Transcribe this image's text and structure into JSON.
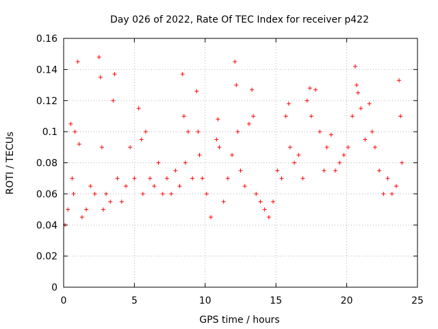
{
  "chart_data": {
    "type": "scatter",
    "title": "Day 026 of 2022, Rate Of TEC Index for receiver p422",
    "xlabel": "GPS time / hours",
    "ylabel": "ROTI / TECUs",
    "xlim": [
      0,
      25
    ],
    "ylim": [
      0,
      0.16
    ],
    "xticks": [
      "0",
      "5",
      "10",
      "15",
      "20",
      "25"
    ],
    "yticks": [
      "0",
      "0.02",
      "0.04",
      "0.06",
      "0.08",
      "0.1",
      "0.12",
      "0.14",
      "0.16"
    ],
    "grid": true,
    "marker": "plus",
    "color": "#ff0000",
    "series": [
      {
        "x": [
          0.1,
          0.3,
          0.5,
          0.6,
          0.7,
          0.8,
          1.0,
          1.1,
          1.3,
          1.6,
          1.9,
          2.2,
          2.5,
          2.6,
          2.7,
          2.8,
          3.0,
          3.3,
          3.5,
          3.6,
          3.8,
          4.1,
          4.4,
          4.7,
          5.0,
          5.3,
          5.5,
          5.6,
          5.8,
          6.1,
          6.4,
          6.7,
          7.0,
          7.3,
          7.6,
          7.9,
          8.2,
          8.4,
          8.5,
          8.6,
          8.8,
          9.1,
          9.4,
          9.5,
          9.6,
          9.8,
          10.1,
          10.4,
          10.8,
          10.9,
          11.0,
          11.3,
          11.6,
          11.9,
          12.1,
          12.2,
          12.3,
          12.5,
          12.8,
          13.1,
          13.3,
          13.4,
          13.6,
          13.9,
          14.2,
          14.5,
          14.8,
          15.1,
          15.4,
          15.7,
          15.9,
          16.0,
          16.3,
          16.6,
          16.9,
          17.2,
          17.4,
          17.5,
          17.8,
          18.1,
          18.4,
          18.6,
          18.9,
          19.2,
          19.5,
          19.8,
          20.1,
          20.4,
          20.6,
          20.7,
          20.8,
          21.0,
          21.3,
          21.6,
          21.8,
          22.0,
          22.3,
          22.6,
          22.9,
          23.2,
          23.5,
          23.7,
          23.8,
          23.9
        ],
        "y": [
          0.04,
          0.05,
          0.105,
          0.07,
          0.06,
          0.1,
          0.145,
          0.092,
          0.045,
          0.05,
          0.065,
          0.06,
          0.148,
          0.135,
          0.09,
          0.05,
          0.06,
          0.055,
          0.12,
          0.137,
          0.07,
          0.055,
          0.065,
          0.09,
          0.07,
          0.115,
          0.095,
          0.06,
          0.1,
          0.07,
          0.065,
          0.08,
          0.06,
          0.07,
          0.06,
          0.075,
          0.065,
          0.137,
          0.11,
          0.08,
          0.1,
          0.07,
          0.126,
          0.1,
          0.085,
          0.07,
          0.06,
          0.045,
          0.095,
          0.108,
          0.09,
          0.055,
          0.07,
          0.085,
          0.145,
          0.13,
          0.1,
          0.075,
          0.065,
          0.105,
          0.127,
          0.11,
          0.06,
          0.055,
          0.05,
          0.045,
          0.055,
          0.075,
          0.07,
          0.11,
          0.118,
          0.09,
          0.08,
          0.085,
          0.07,
          0.12,
          0.128,
          0.11,
          0.127,
          0.1,
          0.075,
          0.09,
          0.098,
          0.075,
          0.08,
          0.085,
          0.09,
          0.11,
          0.142,
          0.13,
          0.125,
          0.115,
          0.095,
          0.118,
          0.1,
          0.09,
          0.075,
          0.06,
          0.07,
          0.06,
          0.065,
          0.133,
          0.11,
          0.08
        ]
      }
    ]
  }
}
